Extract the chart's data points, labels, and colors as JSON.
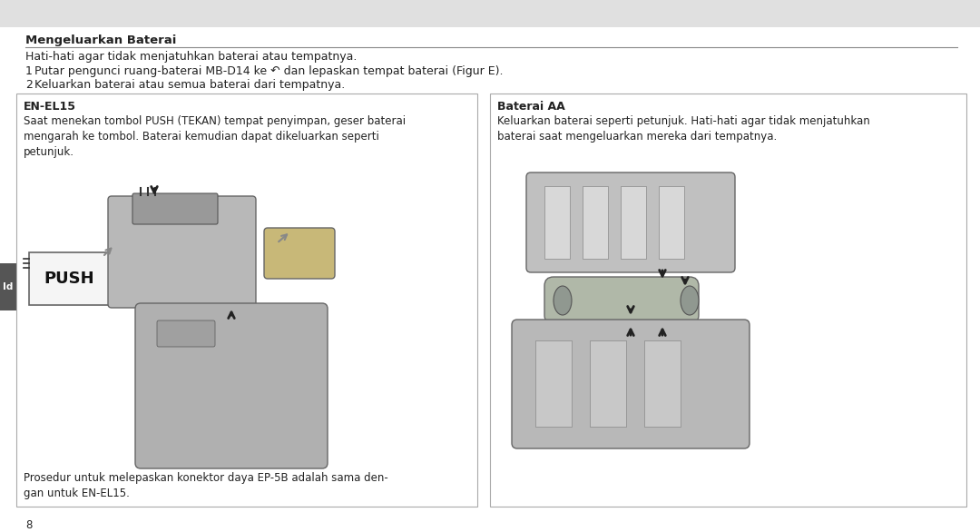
{
  "bg_top_color": "#e0e0e0",
  "bg_main_color": "#ffffff",
  "page_number": "8",
  "side_tab_color": "#555555",
  "side_tab_text": "Id",
  "header_line_color": "#888888",
  "title_bold": "Mengeluarkan Baterai",
  "intro_line": "Hati-hati agar tidak menjatuhkan baterai atau tempatnya.",
  "step1_num": "1",
  "step1_text": "Putar pengunci ruang-baterai MB-D14 ke ↶ dan lepaskan tempat baterai (Figur E).",
  "step2_num": "2",
  "step2_text": "Keluarkan baterai atau semua baterai dari tempatnya.",
  "box_left_title": "EN-EL15",
  "box_left_body": "Saat menekan tombol PUSH (TEKAN) tempat penyimpan, geser baterai\nmengarah ke tombol. Baterai kemudian dapat dikeluarkan seperti\npetunjuk.",
  "box_left_footer": "Prosedur untuk melepaskan konektor daya EP-5B adalah sama den-\ngan untuk EN-EL15.",
  "box_right_title": "Baterai AA",
  "box_right_body": "Keluarkan baterai seperti petunjuk. Hati-hati agar tidak menjatuhkan\nbaterai saat mengeluarkan mereka dari tempatnya.",
  "box_border_color": "#aaaaaa",
  "box_bg_color": "#ffffff",
  "font_color": "#222222",
  "font_size_body": 9.0,
  "font_size_title_main": 9.5,
  "font_size_box_title": 9.0,
  "font_size_box_body": 8.5,
  "font_size_page": 8.5,
  "font_size_push": 13
}
